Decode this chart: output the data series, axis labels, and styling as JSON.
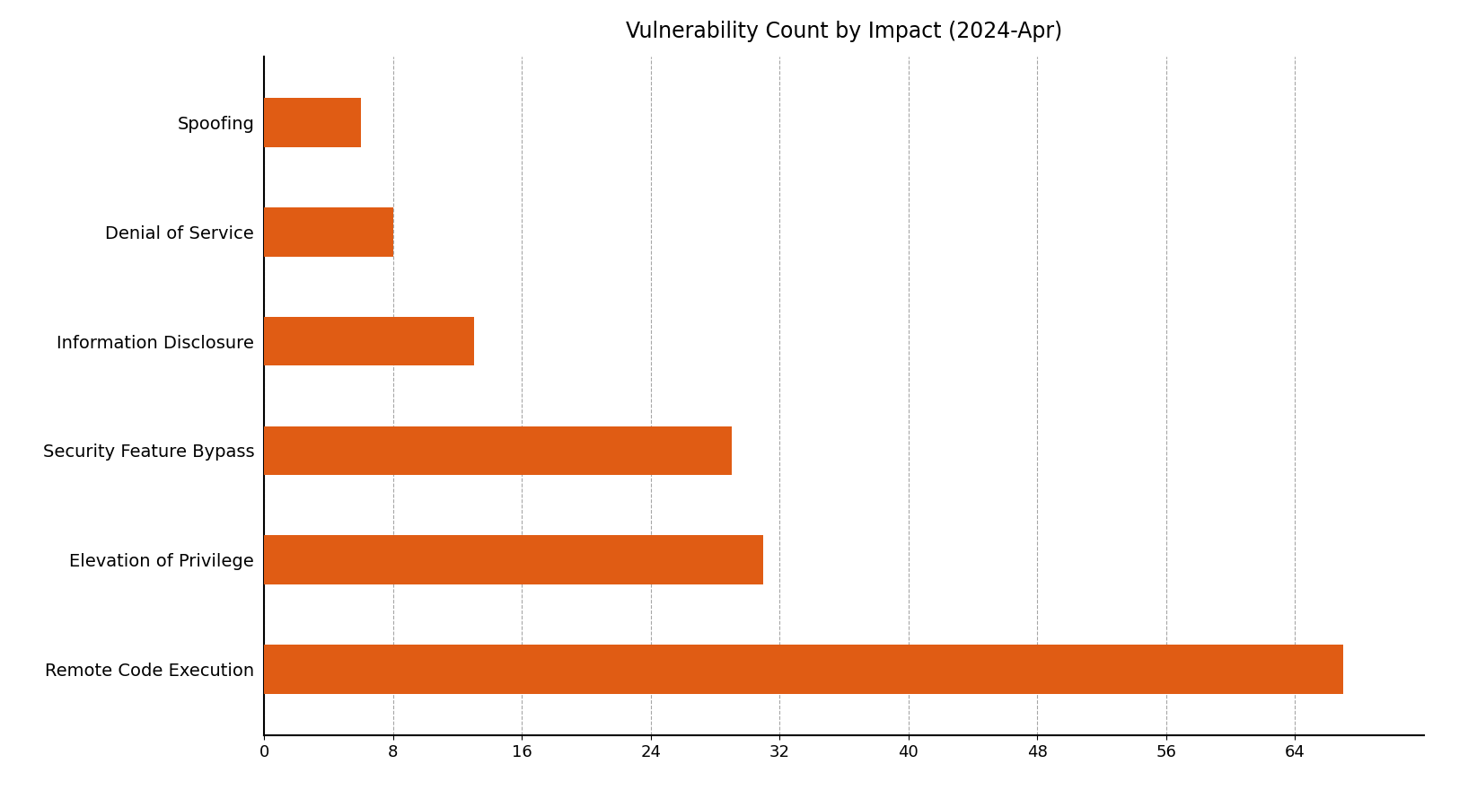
{
  "title": "Vulnerability Count by Impact (2024-Apr)",
  "categories": [
    "Remote Code Execution",
    "Elevation of Privilege",
    "Security Feature Bypass",
    "Information Disclosure",
    "Denial of Service",
    "Spoofing"
  ],
  "values": [
    67,
    31,
    29,
    13,
    8,
    6
  ],
  "bar_color": "#e05c14",
  "background_color": "#ffffff",
  "xlim": [
    0,
    72
  ],
  "xticks": [
    0,
    8,
    16,
    24,
    32,
    40,
    48,
    56,
    64
  ],
  "title_fontsize": 17,
  "tick_fontsize": 13,
  "label_fontsize": 14,
  "bar_height": 0.45
}
